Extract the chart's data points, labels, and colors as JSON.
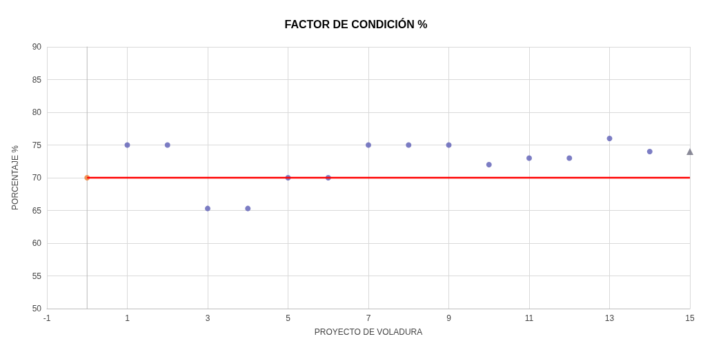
{
  "chart_data": {
    "type": "scatter",
    "title": "FACTOR DE CONDICIÓN %",
    "xlabel": "PROYECTO DE VOLADURA",
    "ylabel": "PORCENTAJE %",
    "xlim": [
      -1,
      15
    ],
    "xticks": [
      -1,
      1,
      3,
      5,
      7,
      9,
      11,
      13,
      15
    ],
    "ylim": [
      50,
      90
    ],
    "yticks": [
      50,
      55,
      60,
      65,
      70,
      75,
      80,
      85,
      90
    ],
    "grid": true,
    "marker": "circle",
    "series": [
      {
        "color": "#5b5db5",
        "x": [
          1,
          2,
          3,
          4,
          5,
          6,
          7,
          8,
          9,
          10,
          11,
          12,
          13,
          14
        ],
        "values": [
          75,
          75,
          65.3,
          65.3,
          70,
          70,
          75,
          75,
          75,
          72,
          73,
          73,
          76,
          74
        ]
      },
      {
        "color": "#6e6e80",
        "marker": "triangle",
        "x": [
          15
        ],
        "values": [
          74
        ]
      },
      {
        "color": "#ed7d31",
        "x": [
          0
        ],
        "values": [
          70
        ]
      },
      {
        "type": "line",
        "color": "#ff0000",
        "marker": "none",
        "x": [
          0,
          15
        ],
        "values": [
          70,
          70
        ]
      }
    ]
  }
}
